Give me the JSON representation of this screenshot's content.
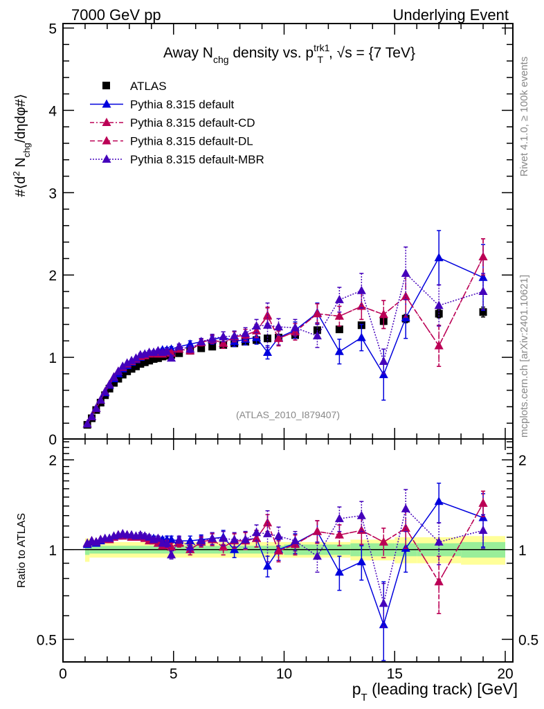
{
  "header": {
    "left": "7000 GeV pp",
    "right": "Underlying Event"
  },
  "side_labels": {
    "rivet": "Rivet 4.1.0, ≥ 100k events",
    "mcplots": "mcplots.cern.ch [arXiv:2401.10621]"
  },
  "chart_data": [
    {
      "type": "scatter",
      "panel": "main",
      "title": "Away N_chg density vs. p_T^trk1, √s = {7 TeV}",
      "title_parts": {
        "a": "Away N",
        "a_sub": "chg",
        "b": " density vs. p",
        "b_sup": "trk1",
        "b_sub": "T",
        "c": ", √s = {7 TeV}"
      },
      "ylabel": "#⟨d² N_chg/dηdφ#⟩",
      "ylabel_parts": {
        "a": "#⟨d",
        "sup": "2",
        "b": " N",
        "sub": "chg",
        "c": "/dηdφ#⟩"
      },
      "xlim": [
        0,
        20
      ],
      "ylim": [
        0,
        5
      ],
      "yticks": [
        "0",
        "1",
        "2",
        "3",
        "4",
        "5"
      ],
      "annotation": "(ATLAS_2010_I879407)",
      "legend_position": "top-left",
      "x": [
        1.1,
        1.3,
        1.5,
        1.7,
        1.9,
        2.1,
        2.3,
        2.5,
        2.7,
        2.9,
        3.1,
        3.3,
        3.5,
        3.7,
        3.9,
        4.1,
        4.3,
        4.5,
        4.7,
        4.9,
        5.25,
        5.75,
        6.25,
        6.75,
        7.25,
        7.75,
        8.25,
        8.75,
        9.25,
        9.75,
        10.5,
        11.5,
        12.5,
        13.5,
        14.5,
        15.5,
        17.0,
        19.0
      ],
      "series": [
        {
          "name": "ATLAS",
          "color": "#000000",
          "marker": "square",
          "line": "none",
          "values": [
            0.18,
            0.26,
            0.36,
            0.45,
            0.54,
            0.62,
            0.69,
            0.74,
            0.79,
            0.83,
            0.86,
            0.89,
            0.92,
            0.94,
            0.96,
            0.98,
            0.99,
            1.01,
            1.02,
            1.03,
            1.05,
            1.08,
            1.11,
            1.13,
            1.15,
            1.17,
            1.19,
            1.21,
            1.23,
            1.24,
            1.27,
            1.33,
            1.34,
            1.39,
            1.44,
            1.47,
            1.53,
            1.55
          ],
          "errors": [
            0.01,
            0.01,
            0.01,
            0.01,
            0.01,
            0.01,
            0.01,
            0.01,
            0.01,
            0.01,
            0.01,
            0.01,
            0.01,
            0.01,
            0.01,
            0.01,
            0.01,
            0.01,
            0.01,
            0.01,
            0.01,
            0.01,
            0.01,
            0.01,
            0.01,
            0.01,
            0.02,
            0.02,
            0.02,
            0.02,
            0.02,
            0.03,
            0.03,
            0.03,
            0.04,
            0.05,
            0.05,
            0.06
          ]
        },
        {
          "name": "Pythia 8.315 default",
          "color": "#0000dd",
          "marker": "triangle",
          "line": "solid",
          "values": [
            0.19,
            0.28,
            0.38,
            0.48,
            0.57,
            0.66,
            0.74,
            0.8,
            0.86,
            0.9,
            0.94,
            0.97,
            1.0,
            1.03,
            1.05,
            1.06,
            1.07,
            1.09,
            1.09,
            1.1,
            1.13,
            1.16,
            1.19,
            1.21,
            1.25,
            1.19,
            1.22,
            1.24,
            1.06,
            1.24,
            1.33,
            1.54,
            1.07,
            1.24,
            0.79,
            1.48,
            2.21,
            1.97
          ],
          "errors": [
            0.01,
            0.01,
            0.01,
            0.01,
            0.01,
            0.01,
            0.01,
            0.01,
            0.01,
            0.01,
            0.01,
            0.01,
            0.02,
            0.02,
            0.02,
            0.02,
            0.02,
            0.02,
            0.03,
            0.03,
            0.03,
            0.04,
            0.04,
            0.05,
            0.06,
            0.06,
            0.07,
            0.08,
            0.08,
            0.09,
            0.1,
            0.12,
            0.15,
            0.16,
            0.31,
            0.25,
            0.33,
            0.4
          ]
        },
        {
          "name": "Pythia 8.315 default-CD",
          "color": "#bb0055",
          "marker": "triangle",
          "line": "dashdot",
          "values": [
            0.19,
            0.28,
            0.38,
            0.48,
            0.58,
            0.67,
            0.76,
            0.83,
            0.88,
            0.92,
            0.95,
            0.98,
            1.01,
            1.02,
            1.04,
            1.05,
            1.04,
            1.04,
            1.06,
            1.05,
            1.1,
            1.08,
            1.18,
            1.22,
            1.17,
            1.25,
            1.27,
            1.32,
            1.5,
            1.23,
            1.31,
            1.53,
            1.5,
            1.62,
            1.52,
            1.74,
            1.14,
            2.22
          ],
          "errors": [
            0.01,
            0.01,
            0.01,
            0.01,
            0.01,
            0.01,
            0.01,
            0.01,
            0.01,
            0.01,
            0.01,
            0.01,
            0.02,
            0.02,
            0.02,
            0.02,
            0.02,
            0.02,
            0.03,
            0.03,
            0.03,
            0.04,
            0.04,
            0.05,
            0.06,
            0.06,
            0.07,
            0.08,
            0.1,
            0.09,
            0.1,
            0.12,
            0.12,
            0.16,
            0.17,
            0.25,
            0.25,
            0.22
          ]
        },
        {
          "name": "Pythia 8.315 default-DL",
          "color": "#bb0055",
          "marker": "triangle",
          "line": "dashed",
          "values": [
            0.19,
            0.28,
            0.38,
            0.48,
            0.58,
            0.67,
            0.76,
            0.83,
            0.88,
            0.92,
            0.95,
            0.98,
            1.01,
            1.02,
            1.04,
            1.05,
            1.04,
            1.04,
            1.06,
            1.05,
            1.1,
            1.08,
            1.18,
            1.22,
            1.17,
            1.25,
            1.27,
            1.32,
            1.51,
            1.23,
            1.31,
            1.53,
            1.5,
            1.62,
            1.52,
            1.74,
            1.14,
            2.22
          ],
          "errors": [
            0.01,
            0.01,
            0.01,
            0.01,
            0.01,
            0.01,
            0.01,
            0.01,
            0.01,
            0.01,
            0.01,
            0.01,
            0.02,
            0.02,
            0.02,
            0.02,
            0.02,
            0.02,
            0.03,
            0.03,
            0.03,
            0.04,
            0.04,
            0.05,
            0.06,
            0.06,
            0.07,
            0.08,
            0.1,
            0.09,
            0.1,
            0.12,
            0.12,
            0.16,
            0.17,
            0.25,
            0.25,
            0.22
          ]
        },
        {
          "name": "Pythia 8.315 default-MBR",
          "color": "#4400bb",
          "marker": "triangle",
          "line": "dotted",
          "values": [
            0.19,
            0.28,
            0.38,
            0.48,
            0.58,
            0.67,
            0.76,
            0.83,
            0.89,
            0.93,
            0.96,
            0.99,
            1.03,
            1.04,
            1.06,
            1.06,
            1.08,
            1.06,
            1.07,
            0.99,
            1.13,
            1.1,
            1.19,
            1.23,
            1.25,
            1.26,
            1.29,
            1.38,
            1.39,
            1.37,
            1.36,
            1.26,
            1.7,
            1.81,
            0.95,
            2.02,
            1.63,
            1.8
          ],
          "errors": [
            0.01,
            0.01,
            0.01,
            0.01,
            0.01,
            0.01,
            0.01,
            0.01,
            0.01,
            0.01,
            0.01,
            0.01,
            0.02,
            0.02,
            0.02,
            0.02,
            0.02,
            0.02,
            0.03,
            0.03,
            0.03,
            0.04,
            0.04,
            0.05,
            0.06,
            0.06,
            0.07,
            0.08,
            0.27,
            0.1,
            0.1,
            0.14,
            0.15,
            0.21,
            0.15,
            0.32,
            0.25,
            0.22
          ]
        }
      ]
    },
    {
      "type": "scatter",
      "panel": "ratio",
      "ylabel": "Ratio to ATLAS",
      "xlabel": "p_T (leading track) [GeV]",
      "xlabel_parts": {
        "a": "p",
        "sub": "T",
        "b": " (leading track) [GeV]"
      },
      "xlim": [
        0,
        20
      ],
      "ylim": [
        0.42,
        2.35
      ],
      "yscale": "log",
      "xticks": [
        "0",
        "5",
        "10",
        "15",
        "20"
      ],
      "yticks": [
        "0.5",
        "1",
        "2"
      ],
      "bands": {
        "inner_color": "#99ee99",
        "outer_color": "#ffff99",
        "x_edges": [
          1.0,
          1.2,
          10.0,
          13.0,
          15.0,
          16.0,
          18.0,
          20.0
        ],
        "inner": [
          0.04,
          0.03,
          0.04,
          0.05,
          0.05,
          0.05,
          0.06
        ],
        "outer": [
          0.09,
          0.06,
          0.06,
          0.08,
          0.1,
          0.1,
          0.11
        ]
      },
      "x": [
        1.1,
        1.3,
        1.5,
        1.7,
        1.9,
        2.1,
        2.3,
        2.5,
        2.7,
        2.9,
        3.1,
        3.3,
        3.5,
        3.7,
        3.9,
        4.1,
        4.3,
        4.5,
        4.7,
        4.9,
        5.25,
        5.75,
        6.25,
        6.75,
        7.25,
        7.75,
        8.25,
        8.75,
        9.25,
        9.75,
        10.5,
        11.5,
        12.5,
        13.5,
        14.5,
        15.5,
        17.0,
        19.0
      ],
      "series": [
        {
          "name": "Pythia 8.315 default",
          "color": "#0000dd",
          "line": "solid",
          "values": [
            1.04,
            1.06,
            1.05,
            1.07,
            1.08,
            1.09,
            1.1,
            1.11,
            1.12,
            1.12,
            1.11,
            1.1,
            1.1,
            1.1,
            1.09,
            1.09,
            1.08,
            1.08,
            1.08,
            1.08,
            1.07,
            1.07,
            1.08,
            1.09,
            1.1,
            1.0,
            1.08,
            1.09,
            0.88,
            1.0,
            1.05,
            1.15,
            0.84,
            0.91,
            0.56,
            1.01,
            1.45,
            1.28
          ],
          "errors": [
            0.01,
            0.01,
            0.01,
            0.01,
            0.01,
            0.01,
            0.01,
            0.01,
            0.01,
            0.01,
            0.01,
            0.01,
            0.02,
            0.02,
            0.02,
            0.02,
            0.02,
            0.02,
            0.03,
            0.03,
            0.03,
            0.04,
            0.04,
            0.05,
            0.06,
            0.06,
            0.07,
            0.07,
            0.07,
            0.08,
            0.08,
            0.1,
            0.11,
            0.12,
            0.22,
            0.17,
            0.22,
            0.26
          ]
        },
        {
          "name": "Pythia 8.315 default-CD",
          "color": "#bb0055",
          "line": "dashdot",
          "values": [
            1.05,
            1.07,
            1.06,
            1.08,
            1.08,
            1.08,
            1.1,
            1.12,
            1.11,
            1.12,
            1.1,
            1.1,
            1.1,
            1.09,
            1.07,
            1.07,
            1.05,
            1.03,
            1.04,
            1.02,
            1.05,
            1.0,
            1.06,
            1.08,
            1.02,
            1.07,
            1.07,
            1.09,
            1.23,
            0.99,
            1.04,
            1.15,
            1.12,
            1.16,
            1.06,
            1.18,
            0.78,
            1.43
          ],
          "errors": [
            0.01,
            0.01,
            0.01,
            0.01,
            0.01,
            0.01,
            0.01,
            0.01,
            0.01,
            0.01,
            0.01,
            0.01,
            0.02,
            0.02,
            0.02,
            0.02,
            0.02,
            0.02,
            0.03,
            0.03,
            0.03,
            0.04,
            0.04,
            0.05,
            0.06,
            0.06,
            0.07,
            0.07,
            0.08,
            0.08,
            0.08,
            0.1,
            0.09,
            0.12,
            0.12,
            0.17,
            0.17,
            0.14
          ]
        },
        {
          "name": "Pythia 8.315 default-DL",
          "color": "#bb0055",
          "line": "dashed",
          "values": [
            1.05,
            1.07,
            1.06,
            1.08,
            1.08,
            1.08,
            1.1,
            1.12,
            1.11,
            1.12,
            1.1,
            1.1,
            1.1,
            1.09,
            1.07,
            1.07,
            1.05,
            1.03,
            1.04,
            1.02,
            1.05,
            1.0,
            1.06,
            1.08,
            1.02,
            1.07,
            1.07,
            1.09,
            1.23,
            0.99,
            1.04,
            1.15,
            1.12,
            1.16,
            1.06,
            1.18,
            0.78,
            1.43
          ],
          "errors": [
            0.01,
            0.01,
            0.01,
            0.01,
            0.01,
            0.01,
            0.01,
            0.01,
            0.01,
            0.01,
            0.01,
            0.01,
            0.02,
            0.02,
            0.02,
            0.02,
            0.02,
            0.02,
            0.03,
            0.03,
            0.03,
            0.04,
            0.04,
            0.05,
            0.06,
            0.06,
            0.07,
            0.07,
            0.08,
            0.08,
            0.08,
            0.1,
            0.09,
            0.12,
            0.12,
            0.17,
            0.17,
            0.14
          ]
        },
        {
          "name": "Pythia 8.315 default-MBR",
          "color": "#4400bb",
          "line": "dotted",
          "values": [
            1.05,
            1.07,
            1.06,
            1.08,
            1.09,
            1.09,
            1.11,
            1.12,
            1.13,
            1.12,
            1.12,
            1.11,
            1.12,
            1.11,
            1.1,
            1.08,
            1.09,
            1.05,
            1.05,
            0.96,
            1.08,
            1.02,
            1.07,
            1.09,
            1.09,
            1.08,
            1.08,
            1.14,
            1.13,
            1.11,
            1.07,
            0.95,
            1.27,
            1.3,
            0.66,
            1.37,
            1.06,
            1.16
          ],
          "errors": [
            0.01,
            0.01,
            0.01,
            0.01,
            0.01,
            0.01,
            0.01,
            0.01,
            0.01,
            0.01,
            0.01,
            0.01,
            0.02,
            0.02,
            0.02,
            0.02,
            0.02,
            0.02,
            0.03,
            0.03,
            0.03,
            0.04,
            0.04,
            0.05,
            0.06,
            0.06,
            0.07,
            0.07,
            0.22,
            0.08,
            0.08,
            0.11,
            0.12,
            0.15,
            0.11,
            0.22,
            0.17,
            0.15
          ]
        }
      ]
    }
  ]
}
